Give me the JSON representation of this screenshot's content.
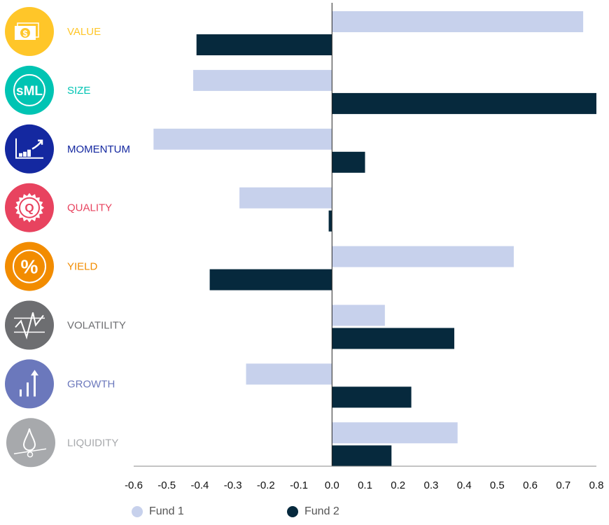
{
  "chart_data": {
    "type": "bar",
    "orientation": "horizontal",
    "categories": [
      "VALUE",
      "SIZE",
      "MOMENTUM",
      "QUALITY",
      "YIELD",
      "VOLATILITY",
      "GROWTH",
      "LIQUIDITY"
    ],
    "category_colors": [
      "#FFC629",
      "#00C4B3",
      "#1428A0",
      "#E8435F",
      "#F28C00",
      "#6D6E71",
      "#6B78BC",
      "#A7A9AC"
    ],
    "category_icons": [
      "money-icon",
      "size-sml-icon",
      "momentum-chart-icon",
      "quality-seal-icon",
      "percent-icon",
      "volatility-icon",
      "growth-bars-icon",
      "liquidity-drop-icon"
    ],
    "series": [
      {
        "name": "Fund 1",
        "color": "#C7D1EC",
        "values": [
          0.76,
          -0.42,
          -0.54,
          -0.28,
          0.55,
          0.16,
          -0.26,
          0.38
        ]
      },
      {
        "name": "Fund 2",
        "color": "#06293D",
        "values": [
          -0.41,
          0.8,
          0.1,
          -0.01,
          -0.37,
          0.37,
          0.24,
          0.18
        ]
      }
    ],
    "xlim": [
      -0.6,
      0.8
    ],
    "xticks": [
      "-0.6",
      "-0.5",
      "-0.4",
      "-0.3",
      "-0.2",
      "-0.1",
      "0.0",
      "0.1",
      "0.2",
      "0.3",
      "0.4",
      "0.5",
      "0.6",
      "0.7",
      "0.8"
    ],
    "grid": false,
    "legend_position": "bottom-left"
  }
}
